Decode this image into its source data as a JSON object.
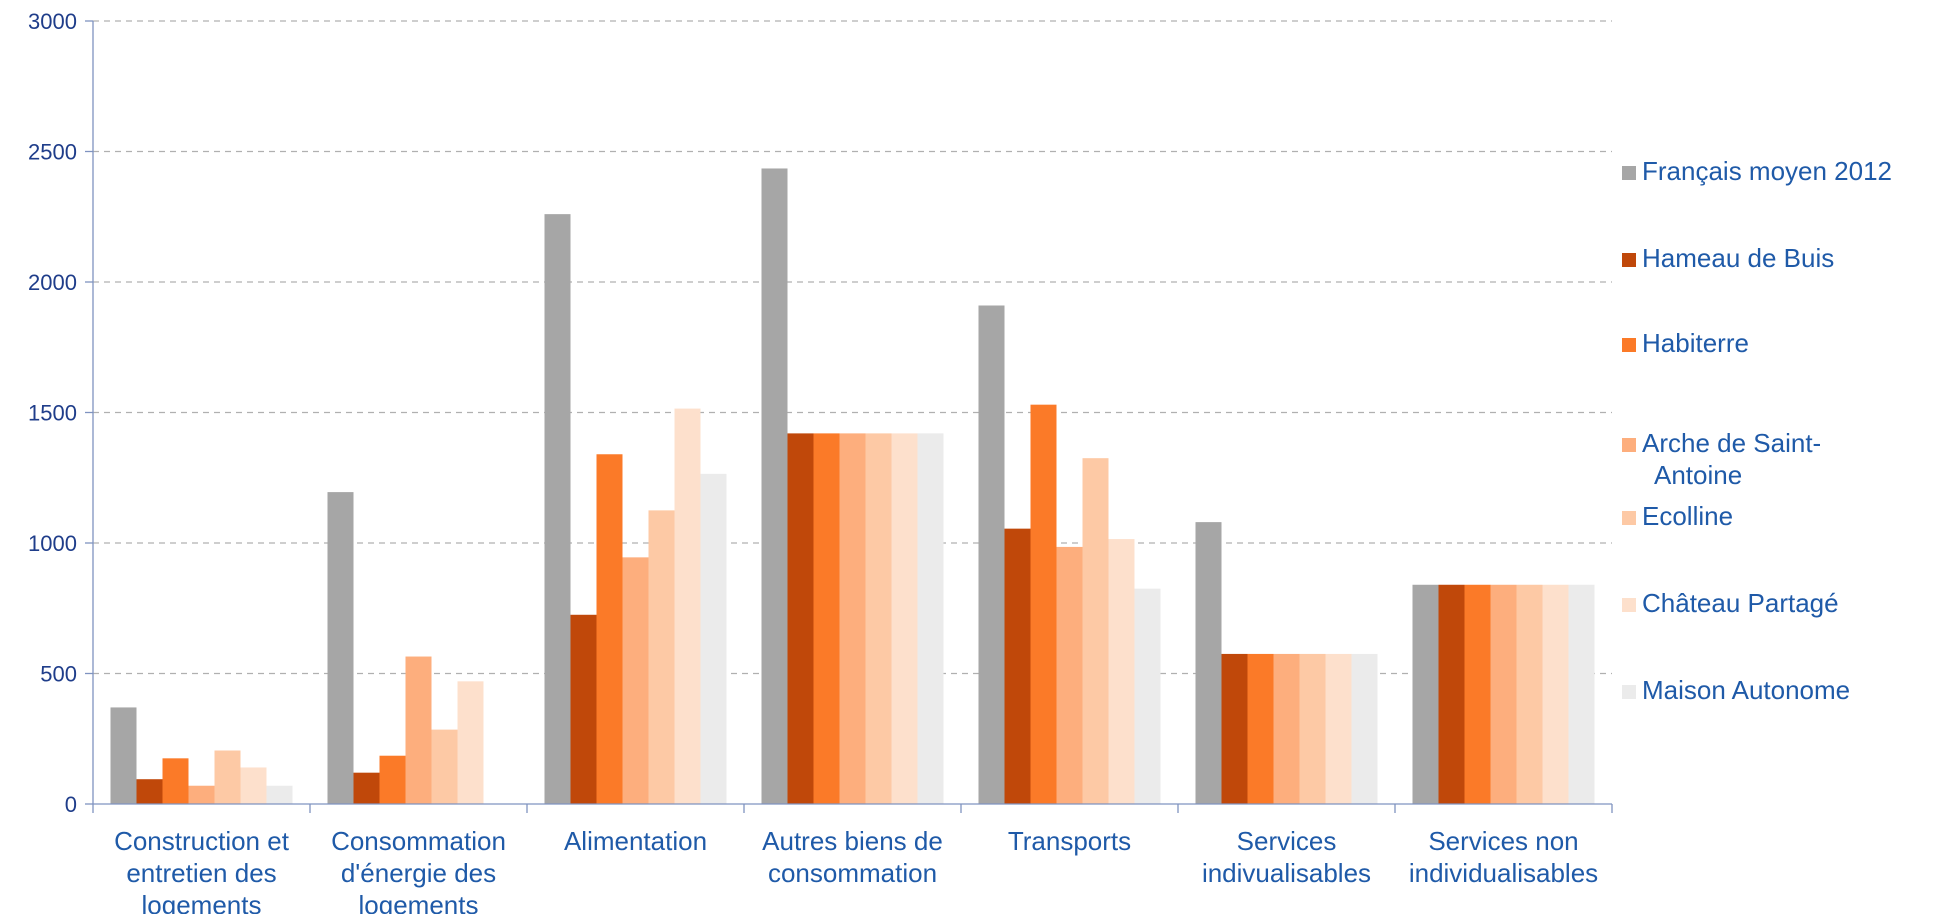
{
  "chart_data": {
    "type": "bar",
    "ylim": [
      0,
      3000
    ],
    "yticks": [
      0,
      500,
      1000,
      1500,
      2000,
      2500,
      3000
    ],
    "grid": true,
    "legend_position": "right",
    "categories": [
      [
        "Construction et",
        "entretien des",
        "logements"
      ],
      [
        "Consommation",
        "d'énergie des",
        "logements"
      ],
      [
        "Alimentation"
      ],
      [
        "Autres biens de",
        "consommation"
      ],
      [
        "Transports"
      ],
      [
        "Services",
        "indivualisables"
      ],
      [
        "Services non",
        "individualisables"
      ]
    ],
    "series": [
      {
        "name": [
          "Français moyen 2012"
        ],
        "color": "#a6a6a6",
        "values": [
          370,
          1195,
          2260,
          2435,
          1910,
          1080,
          840
        ]
      },
      {
        "name": [
          "Hameau de Buis"
        ],
        "color": "#c0480a",
        "values": [
          95,
          120,
          725,
          1420,
          1055,
          575,
          840
        ]
      },
      {
        "name": [
          "Habiterre"
        ],
        "color": "#fb7a28",
        "values": [
          175,
          185,
          1340,
          1420,
          1530,
          575,
          840
        ]
      },
      {
        "name": [
          "Arche de Saint-",
          "Antoine"
        ],
        "color": "#fdae7d",
        "values": [
          70,
          565,
          945,
          1420,
          985,
          575,
          840
        ]
      },
      {
        "name": [
          "Ecolline"
        ],
        "color": "#fdc9a5",
        "values": [
          205,
          285,
          1125,
          1420,
          1325,
          575,
          840
        ]
      },
      {
        "name": [
          "Château Partagé"
        ],
        "color": "#fde0cc",
        "values": [
          140,
          470,
          1515,
          1420,
          1015,
          575,
          840
        ]
      },
      {
        "name": [
          "Maison Autonome"
        ],
        "color": "#ebebeb",
        "values": [
          70,
          0,
          1265,
          1420,
          825,
          575,
          840
        ]
      }
    ]
  }
}
